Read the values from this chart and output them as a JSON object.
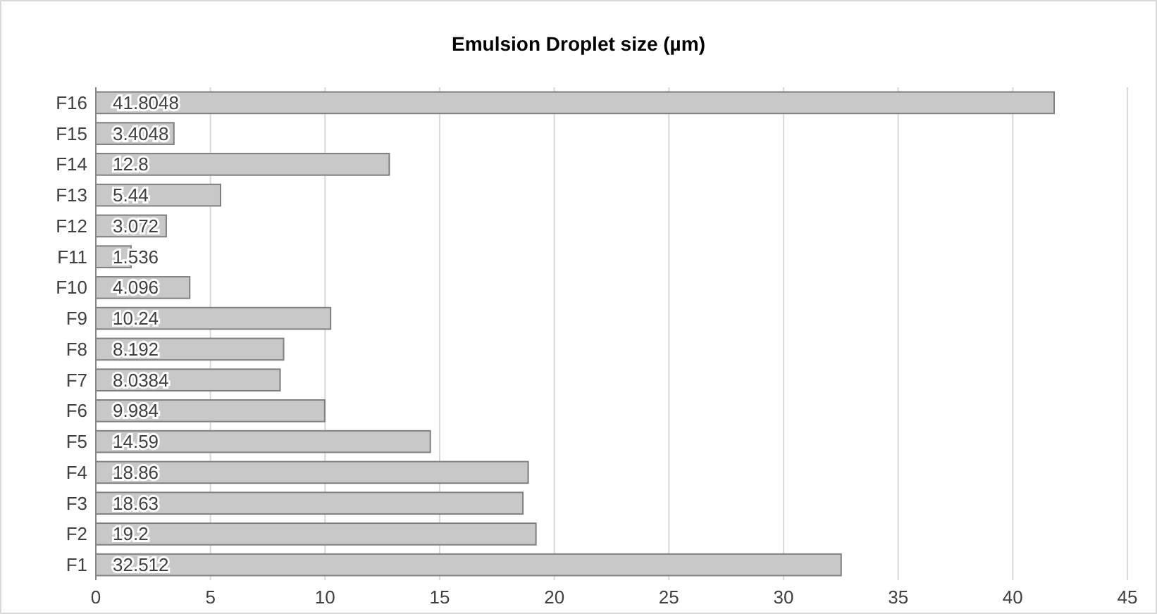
{
  "chart_data": {
    "type": "bar",
    "orientation": "horizontal",
    "title": "Emulsion  Droplet size (µm)",
    "categories": [
      "F16",
      "F15",
      "F14",
      "F13",
      "F12",
      "F11",
      "F10",
      "F9",
      "F8",
      "F7",
      "F6",
      "F5",
      "F4",
      "F3",
      "F2",
      "F1"
    ],
    "values": [
      41.8048,
      3.4048,
      12.8,
      5.44,
      3.072,
      1.536,
      4.096,
      10.24,
      8.192,
      8.0384,
      9.984,
      14.59,
      18.86,
      18.63,
      19.2,
      32.512
    ],
    "color": "#c8c8c8",
    "xlim": [
      0,
      45
    ],
    "xticks": [
      0,
      5,
      10,
      15,
      20,
      25,
      30,
      35,
      40,
      45
    ],
    "grid": "x",
    "data_labels": true
  }
}
